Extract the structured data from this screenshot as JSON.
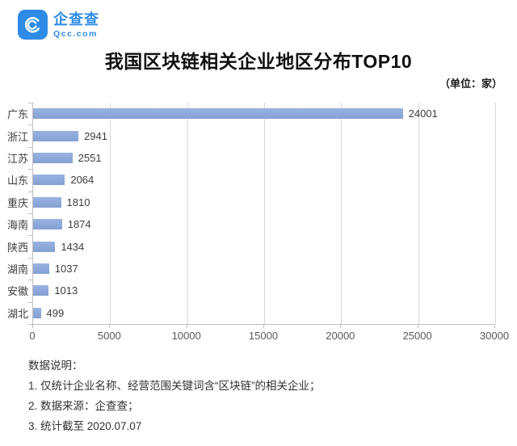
{
  "brand": {
    "name": "企查查",
    "domain": "Qcc.com",
    "color": "#2E8BE6",
    "logo_icon": "qcc-swirl-icon"
  },
  "title": "我国区块链相关企业地区分布TOP10",
  "unit_label": "（单位：家）",
  "chart_data": {
    "type": "bar",
    "orientation": "horizontal",
    "title": "我国区块链相关企业地区分布TOP10",
    "unit": "家",
    "categories": [
      "广东",
      "浙江",
      "江苏",
      "山东",
      "重庆",
      "海南",
      "陕西",
      "湖南",
      "安徽",
      "湖北"
    ],
    "values": [
      24001,
      2941,
      2551,
      2064,
      1810,
      1874,
      1434,
      1037,
      1013,
      499
    ],
    "xlabel": "",
    "ylabel": "",
    "xlim": [
      0,
      30000
    ],
    "x_ticks": [
      0,
      5000,
      10000,
      15000,
      20000,
      25000,
      30000
    ],
    "grid": "vertical",
    "legend": "none",
    "bar_color": "#8FAADC",
    "gridline_color": "#d9d9d9",
    "axis_color": "#bfbfbf"
  },
  "notes": {
    "heading": "数据说明：",
    "items": [
      "1. 仅统计企业名称、经营范围关键词含“区块链”的相关企业；",
      "2. 数据来源：企查查；",
      "3. 统计截至 2020.07.07"
    ]
  }
}
